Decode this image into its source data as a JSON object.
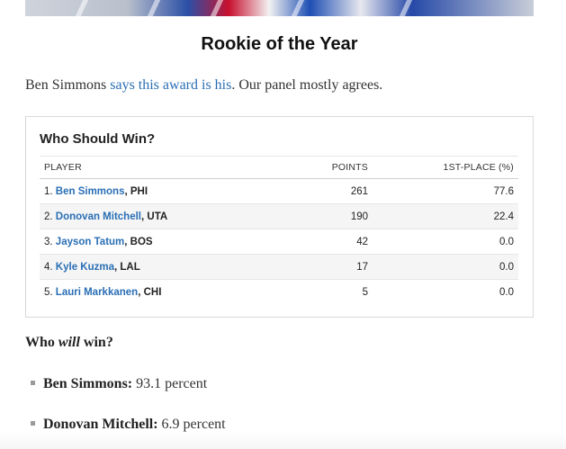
{
  "article": {
    "title": "Rookie of the Year",
    "intro_prefix": "Ben Simmons ",
    "intro_link": "says this award is his",
    "intro_suffix": ". Our panel mostly agrees."
  },
  "table": {
    "title": "Who Should Win?",
    "columns": [
      "PLAYER",
      "POINTS",
      "1ST-PLACE (%)"
    ],
    "rows": [
      {
        "rank": "1.",
        "name": "Ben Simmons",
        "team": ", PHI",
        "points": "261",
        "first_place": "77.6"
      },
      {
        "rank": "2.",
        "name": "Donovan Mitchell",
        "team": ", UTA",
        "points": "190",
        "first_place": "22.4"
      },
      {
        "rank": "3.",
        "name": "Jayson Tatum",
        "team": ", BOS",
        "points": "42",
        "first_place": "0.0"
      },
      {
        "rank": "4.",
        "name": "Kyle Kuzma",
        "team": ", LAL",
        "points": "17",
        "first_place": "0.0"
      },
      {
        "rank": "5.",
        "name": "Lauri Markkanen",
        "team": ", CHI",
        "points": "5",
        "first_place": "0.0"
      }
    ]
  },
  "prediction": {
    "heading_prefix": "Who ",
    "heading_emphasis": "will",
    "heading_suffix": " win?",
    "items": [
      {
        "who": "Ben Simmons:",
        "value": " 93.1 percent"
      },
      {
        "who": "Donovan Mitchell:",
        "value": " 6.9 percent"
      }
    ]
  },
  "colors": {
    "link": "#2a6fb5",
    "row_alt": "#f5f5f5",
    "border": "#d8d8d8"
  }
}
